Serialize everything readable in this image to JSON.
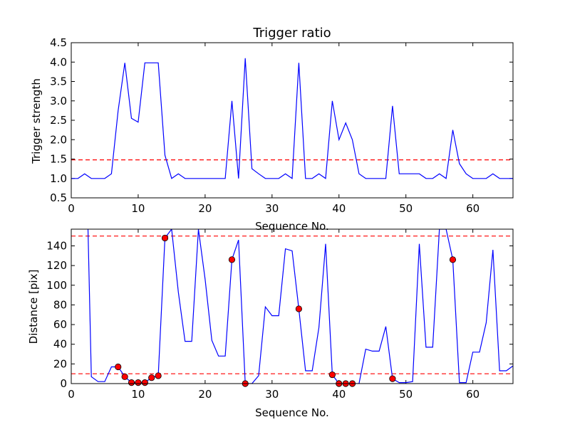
{
  "chart_data": [
    {
      "type": "line",
      "title": "Trigger ratio",
      "xlabel": "Sequence No.",
      "ylabel": "Trigger strength",
      "xlim": [
        0,
        66
      ],
      "ylim": [
        0.5,
        4.5
      ],
      "xticks": [
        0,
        10,
        20,
        30,
        40,
        50,
        60
      ],
      "yticks": [
        0.5,
        1.0,
        1.5,
        2.0,
        2.5,
        3.0,
        3.5,
        4.0,
        4.5
      ],
      "threshold": 1.48,
      "line_color": "#0000ff",
      "threshold_color": "#ff0000",
      "x": [
        0,
        1,
        2,
        3,
        4,
        5,
        6,
        7,
        8,
        9,
        10,
        11,
        12,
        13,
        14,
        15,
        16,
        17,
        18,
        19,
        20,
        21,
        22,
        23,
        24,
        25,
        26,
        27,
        28,
        29,
        30,
        31,
        32,
        33,
        34,
        35,
        36,
        37,
        38,
        39,
        40,
        41,
        42,
        43,
        44,
        45,
        46,
        47,
        48,
        49,
        50,
        51,
        52,
        53,
        54,
        55,
        56,
        57,
        58,
        59,
        60,
        61,
        62,
        63,
        64,
        65,
        66
      ],
      "y": [
        1.0,
        1.0,
        1.12,
        1.0,
        1.0,
        1.0,
        1.12,
        2.75,
        3.98,
        2.55,
        2.45,
        3.98,
        3.98,
        3.98,
        1.6,
        1.0,
        1.12,
        1.0,
        1.0,
        1.0,
        1.0,
        1.0,
        1.0,
        1.0,
        3.0,
        1.0,
        4.1,
        1.25,
        1.12,
        1.0,
        1.0,
        1.0,
        1.12,
        1.0,
        3.98,
        1.0,
        1.0,
        1.12,
        1.0,
        3.0,
        2.0,
        2.43,
        2.0,
        1.12,
        1.0,
        1.0,
        1.0,
        1.0,
        2.87,
        1.12,
        1.12,
        1.12,
        1.12,
        1.0,
        1.0,
        1.12,
        1.0,
        2.25,
        1.38,
        1.12,
        1.0,
        1.0,
        1.0,
        1.12,
        1.0,
        1.0,
        1.0
      ]
    },
    {
      "type": "line",
      "xlabel": "Sequence No.",
      "ylabel": "Distance [pix]",
      "xlim": [
        0,
        66
      ],
      "ylim": [
        0,
        157
      ],
      "xticks": [
        0,
        10,
        20,
        30,
        40,
        50,
        60
      ],
      "yticks": [
        0,
        20,
        40,
        60,
        80,
        100,
        120,
        140
      ],
      "thresholds": [
        150,
        10
      ],
      "line_color": "#0000ff",
      "threshold_color": "#ff0000",
      "marker_color": "#ff0000",
      "x": [
        2.5,
        3,
        4,
        5,
        6,
        7,
        8,
        9,
        10,
        11,
        12,
        13,
        14,
        15,
        16,
        17,
        18,
        19,
        20,
        21,
        22,
        23,
        24,
        25,
        26,
        27,
        28,
        29,
        30,
        31,
        32,
        33,
        34,
        35,
        36,
        37,
        38,
        39,
        40,
        41,
        42,
        43,
        44,
        45,
        46,
        47,
        48,
        49,
        50,
        51,
        52,
        53,
        54,
        55,
        56,
        57,
        58,
        59,
        60,
        61,
        62,
        63,
        64,
        65,
        66
      ],
      "y": [
        157,
        7,
        2,
        2,
        17,
        17,
        7,
        1,
        1,
        1,
        6,
        8,
        148,
        157,
        93,
        43,
        43,
        157,
        106,
        44,
        28,
        28,
        126,
        146,
        0,
        0,
        8,
        78,
        69,
        69,
        137,
        135,
        76,
        13,
        13,
        57,
        142,
        9,
        0,
        0,
        0,
        0,
        35,
        33,
        33,
        58,
        5,
        1,
        1,
        2,
        142,
        37,
        37,
        157,
        157,
        126,
        1,
        1,
        32,
        32,
        62,
        136,
        13,
        13,
        18
      ],
      "markers": {
        "x": [
          7,
          8,
          9,
          10,
          11,
          12,
          13,
          14,
          24,
          26,
          34,
          39,
          40,
          41,
          42,
          48,
          57
        ],
        "y": [
          17,
          7,
          1,
          1,
          1,
          6,
          8,
          148,
          126,
          0,
          76,
          9,
          0,
          0,
          0,
          5,
          126
        ]
      }
    }
  ]
}
